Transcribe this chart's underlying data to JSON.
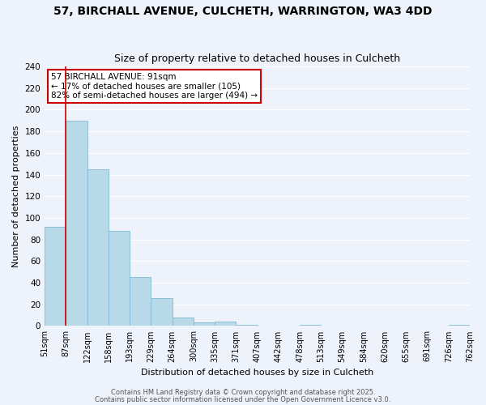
{
  "title": "57, BIRCHALL AVENUE, CULCHETH, WARRINGTON, WA3 4DD",
  "subtitle": "Size of property relative to detached houses in Culcheth",
  "xlabel": "Distribution of detached houses by size in Culcheth",
  "ylabel": "Number of detached properties",
  "bar_values": [
    92,
    190,
    145,
    88,
    45,
    26,
    8,
    3,
    4,
    1,
    0,
    0,
    1,
    0,
    0,
    0,
    0,
    0,
    0,
    1
  ],
  "bar_labels": [
    "51sqm",
    "87sqm",
    "122sqm",
    "158sqm",
    "193sqm",
    "229sqm",
    "264sqm",
    "300sqm",
    "335sqm",
    "371sqm",
    "407sqm",
    "442sqm",
    "478sqm",
    "513sqm",
    "549sqm",
    "584sqm",
    "620sqm",
    "655sqm",
    "691sqm",
    "726sqm",
    "762sqm"
  ],
  "bar_color": "#b8d9e8",
  "bar_edge_color": "#7fb8d4",
  "vline_x": 0.5,
  "vline_color": "#cc0000",
  "annotation_text": "57 BIRCHALL AVENUE: 91sqm\n← 17% of detached houses are smaller (105)\n82% of semi-detached houses are larger (494) →",
  "annotation_box_color": "#ffffff",
  "annotation_box_edge": "#cc0000",
  "ylim": [
    0,
    240
  ],
  "yticks": [
    0,
    20,
    40,
    60,
    80,
    100,
    120,
    140,
    160,
    180,
    200,
    220,
    240
  ],
  "footer1": "Contains HM Land Registry data © Crown copyright and database right 2025.",
  "footer2": "Contains public sector information licensed under the Open Government Licence v3.0.",
  "bg_color": "#eef2fb",
  "grid_color": "#ffffff",
  "title_fontsize": 10,
  "subtitle_fontsize": 9,
  "tick_fontsize": 7,
  "ylabel_fontsize": 8,
  "xlabel_fontsize": 8,
  "footer_fontsize": 6,
  "annot_fontsize": 7.5
}
